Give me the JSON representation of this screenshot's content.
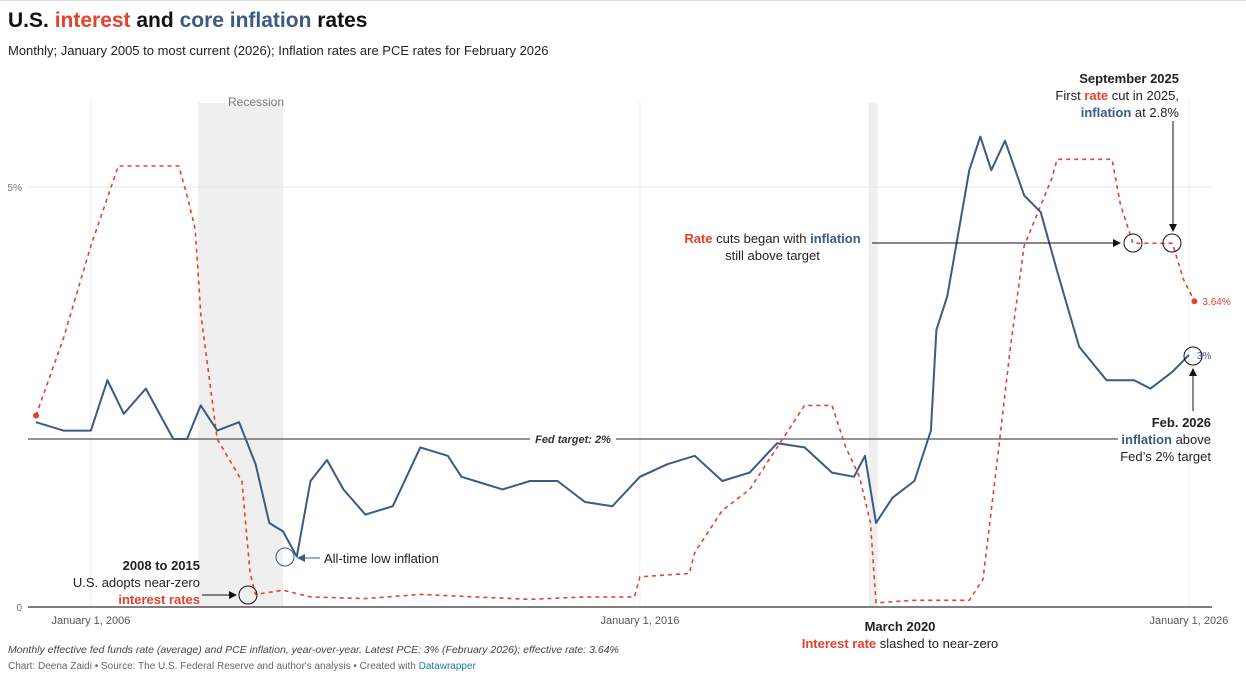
{
  "header": {
    "title_parts": [
      "U.S. ",
      "interest",
      " and ",
      "core inflation",
      " rates"
    ],
    "subtitle": "Monthly; January 2005 to most current (2026); Inflation rates are PCE rates for February 2026"
  },
  "colors": {
    "rate": "#e4412f",
    "inflation": "#3b5a84",
    "recession": "#efefef"
  },
  "chart_data": {
    "type": "line",
    "title": "U.S. interest and core inflation rates",
    "xlim": [
      2005,
      2026.2
    ],
    "ylim": [
      0,
      6
    ],
    "x_ticks": [
      "January 1, 2006",
      "January 1, 2016",
      "January 1, 2026"
    ],
    "y_ticks": [
      "0",
      "5%"
    ],
    "grid": true,
    "reference_line": {
      "value": 2,
      "label": "Fed target: 2%"
    },
    "shaded_regions": [
      {
        "label": "Recession",
        "from": 2007.95,
        "to": 2009.5
      },
      {
        "label": "",
        "from": 2020.17,
        "to": 2020.33
      }
    ],
    "series": [
      {
        "key": "rate",
        "style": "dashed",
        "end_label": "3.64%",
        "x": [
          2005.0,
          2005.5,
          2006.0,
          2006.5,
          2007.0,
          2007.6,
          2007.75,
          2007.9,
          2008.0,
          2008.1,
          2008.3,
          2008.75,
          2008.9,
          2009.0,
          2009.5,
          2010.0,
          2011.0,
          2012.0,
          2013.0,
          2014.0,
          2015.0,
          2015.9,
          2016.0,
          2016.9,
          2017.0,
          2017.5,
          2018.0,
          2018.5,
          2019.0,
          2019.5,
          2019.75,
          2020.0,
          2020.2,
          2020.3,
          2021.0,
          2022.0,
          2022.25,
          2022.5,
          2022.75,
          2023.0,
          2023.5,
          2023.6,
          2024.6,
          2024.75,
          2024.98,
          2025.7,
          2025.9,
          2026.1
        ],
        "y": [
          2.28,
          3.2,
          4.3,
          5.25,
          5.25,
          5.25,
          4.9,
          4.5,
          3.5,
          3.0,
          2.0,
          1.5,
          0.4,
          0.15,
          0.2,
          0.12,
          0.1,
          0.15,
          0.12,
          0.09,
          0.12,
          0.12,
          0.36,
          0.4,
          0.65,
          1.15,
          1.4,
          1.9,
          2.4,
          2.4,
          1.9,
          1.55,
          1.0,
          0.05,
          0.08,
          0.08,
          0.33,
          1.7,
          3.1,
          4.3,
          5.1,
          5.33,
          5.33,
          4.8,
          4.33,
          4.33,
          3.9,
          3.64
        ]
      },
      {
        "key": "inflation",
        "style": "solid",
        "end_label": "3%",
        "x": [
          2005.0,
          2005.5,
          2006.0,
          2006.3,
          2006.6,
          2007.0,
          2007.5,
          2007.75,
          2008.0,
          2008.3,
          2008.7,
          2009.0,
          2009.25,
          2009.5,
          2009.75,
          2010.0,
          2010.3,
          2010.6,
          2011.0,
          2011.5,
          2012.0,
          2012.5,
          2012.75,
          2013.0,
          2013.5,
          2014.0,
          2014.5,
          2015.0,
          2015.5,
          2016.0,
          2016.5,
          2017.0,
          2017.5,
          2018.0,
          2018.5,
          2019.0,
          2019.5,
          2019.9,
          2020.1,
          2020.3,
          2020.6,
          2021.0,
          2021.3,
          2021.4,
          2021.6,
          2022.0,
          2022.2,
          2022.4,
          2022.65,
          2023.0,
          2023.3,
          2023.6,
          2024.0,
          2024.5,
          2025.0,
          2025.3,
          2025.7,
          2026.0
        ],
        "y": [
          2.2,
          2.1,
          2.1,
          2.7,
          2.3,
          2.6,
          2.0,
          2.0,
          2.4,
          2.1,
          2.2,
          1.7,
          1.0,
          0.9,
          0.6,
          1.5,
          1.75,
          1.4,
          1.1,
          1.2,
          1.9,
          1.8,
          1.55,
          1.5,
          1.4,
          1.5,
          1.5,
          1.25,
          1.2,
          1.55,
          1.7,
          1.8,
          1.5,
          1.6,
          1.95,
          1.9,
          1.6,
          1.55,
          1.8,
          1.0,
          1.3,
          1.5,
          2.1,
          3.3,
          3.7,
          5.2,
          5.6,
          5.2,
          5.55,
          4.9,
          4.7,
          4.0,
          3.1,
          2.7,
          2.7,
          2.6,
          2.8,
          3.0
        ]
      }
    ]
  },
  "annotations": {
    "recession": "Recession",
    "zero": {
      "title": "2008 to 2015",
      "line1": "U.S. adopts near-zero",
      "line2": "interest rates"
    },
    "low": "All-time low inflation",
    "march": {
      "title": "March 2020",
      "red": "Interest rate",
      "rest": " slashed to near-zero"
    },
    "cuts": {
      "red": "Rate",
      "mid": " cuts began with ",
      "blue": "inflation",
      "line2": "still above target"
    },
    "sept": {
      "title": "September 2025",
      "a": "First ",
      "red": "rate",
      "b": " cut in 2025,",
      "blue": "inflation",
      "c": " at 2.8%"
    },
    "feb": {
      "title": "Feb. 2026",
      "blue": "inflation",
      "a": " above",
      "line2": "Fed’s 2% target"
    }
  },
  "footer": {
    "notes": "Monthly effective fed funds rate (average) and PCE inflation, year-over-year. Latest PCE: 3% (February 2026); effective rate: 3.64%",
    "credit": "Chart: Deena Zaidi • Source: The U.S. Federal Reserve and author's analysis • Created with ",
    "credit_link": "Datawrapper"
  }
}
